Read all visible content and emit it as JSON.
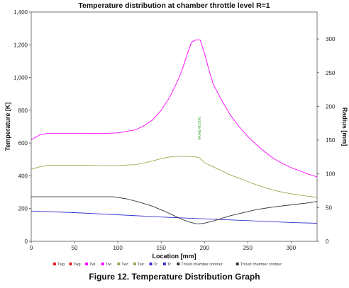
{
  "chart_data": {
    "type": "line",
    "title": "Temperature distribution at chamber throttle level R=1",
    "xlabel": "Location [mm]",
    "ylabel": "Temperature [K]",
    "y2label": "Radius [mm]",
    "xlim": [
      0,
      330
    ],
    "ylim": [
      0,
      1400
    ],
    "y2lim": [
      0,
      340
    ],
    "x_ticks": [
      "0",
      "50",
      "100",
      "150",
      "200",
      "250",
      "300"
    ],
    "y_ticks": [
      "0",
      "200",
      "400",
      "600",
      "800",
      "1,000",
      "1,200",
      "1,400"
    ],
    "y2_ticks": [
      "0",
      "50",
      "100",
      "150",
      "200",
      "250",
      "300"
    ],
    "grid": false,
    "legend_position": "bottom",
    "legend": [
      {
        "label": "Twg",
        "color": "#e41a1c"
      },
      {
        "label": "Twg",
        "color": "#e41a1c"
      },
      {
        "label": "Twi",
        "color": "#ff00ff"
      },
      {
        "label": "Twi",
        "color": "#ff00ff"
      },
      {
        "label": "Twc",
        "color": "#9aa84f"
      },
      {
        "label": "Twc",
        "color": "#9aa84f"
      },
      {
        "label": "Tc",
        "color": "#3333cc"
      },
      {
        "label": "Tc",
        "color": "#3333cc"
      },
      {
        "label": "Thrust chamber contour",
        "color": "#333333"
      },
      {
        "label": "Thrust chamber contour",
        "color": "#333333"
      }
    ],
    "annotations": [
      {
        "text": "Nozzle throat",
        "x": 193,
        "y": 690
      }
    ],
    "series": [
      {
        "axis": "left",
        "color": "#ff00ff",
        "x": [
          0,
          10,
          20,
          40,
          60,
          80,
          100,
          120,
          130,
          140,
          150,
          160,
          170,
          175,
          180,
          185,
          190,
          195,
          200,
          205,
          210,
          220,
          230,
          240,
          250,
          260,
          270,
          280,
          290,
          300,
          310,
          320,
          330
        ],
        "y": [
          620,
          650,
          660,
          660,
          660,
          658,
          662,
          680,
          705,
          740,
          800,
          880,
          990,
          1060,
          1140,
          1215,
          1230,
          1230,
          1150,
          1050,
          960,
          860,
          770,
          700,
          640,
          590,
          545,
          505,
          475,
          450,
          430,
          410,
          393
        ]
      },
      {
        "axis": "left",
        "color": "#9aa84f",
        "x": [
          0,
          10,
          20,
          40,
          60,
          80,
          100,
          120,
          130,
          140,
          150,
          160,
          170,
          180,
          190,
          195,
          200,
          210,
          220,
          230,
          240,
          250,
          260,
          270,
          280,
          290,
          300,
          310,
          320,
          330
        ],
        "y": [
          440,
          455,
          465,
          465,
          465,
          462,
          463,
          468,
          478,
          490,
          505,
          515,
          520,
          518,
          515,
          508,
          480,
          455,
          430,
          405,
          385,
          365,
          345,
          328,
          312,
          300,
          290,
          282,
          275,
          268
        ]
      },
      {
        "axis": "left",
        "color": "#3333cc",
        "x": [
          0,
          50,
          100,
          150,
          200,
          250,
          300,
          330
        ],
        "y": [
          185,
          175,
          162,
          148,
          137,
          126,
          115,
          110
        ]
      },
      {
        "axis": "right",
        "color": "#333333",
        "x": [
          0,
          20,
          40,
          60,
          80,
          95,
          110,
          125,
          140,
          155,
          165,
          175,
          182,
          190,
          195,
          200,
          210,
          220,
          230,
          240,
          260,
          280,
          300,
          320,
          330
        ],
        "y": [
          66,
          66,
          66,
          66,
          66,
          66,
          63,
          58,
          52,
          44,
          38,
          32,
          29,
          26,
          26,
          27,
          30,
          34,
          38,
          41,
          47,
          51,
          54,
          57,
          59
        ]
      }
    ]
  },
  "caption": "Figure 12. Temperature Distribution Graph"
}
